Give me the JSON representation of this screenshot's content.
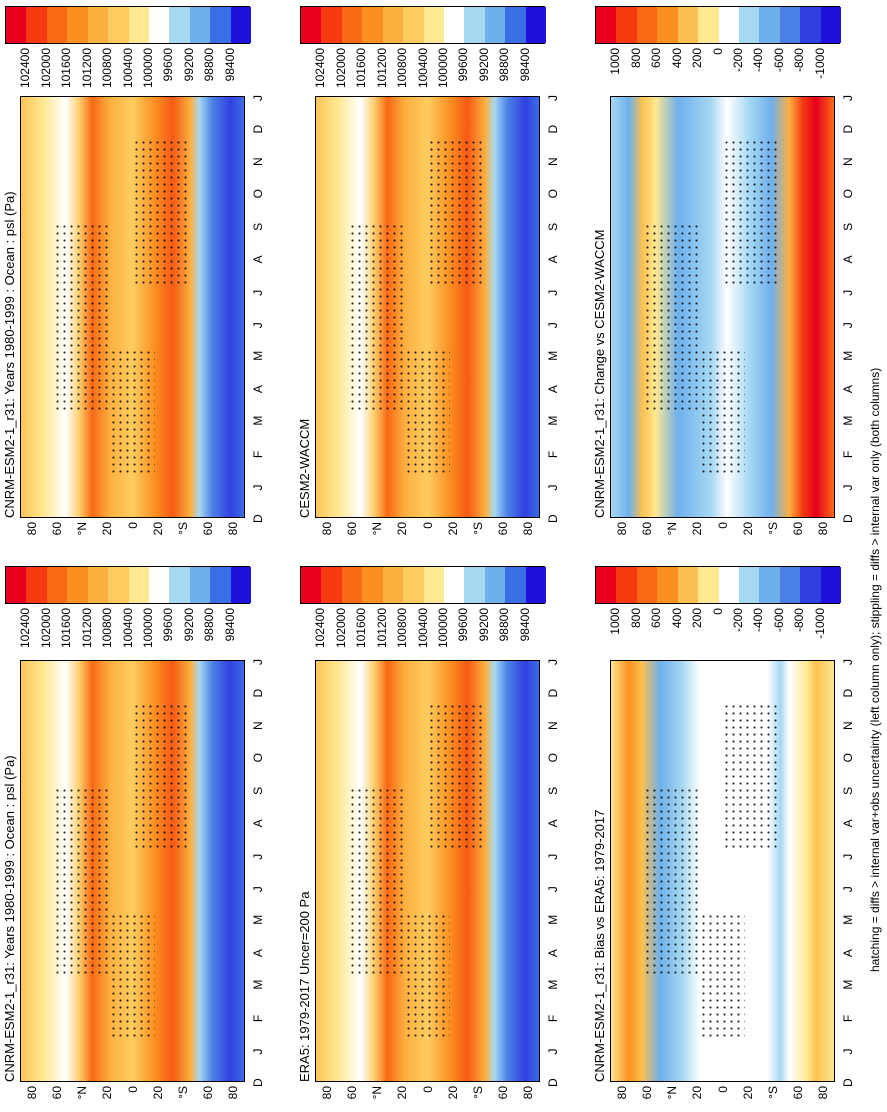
{
  "panels": [
    {
      "title": "CNRM-ESM2-1_r31: Years 1980-1999 : Ocean : psl (Pa)",
      "colorbar": {
        "labels": [
          102400,
          102000,
          101600,
          101200,
          100800,
          100400,
          100000,
          99600,
          99200,
          98800,
          98400
        ],
        "colors": [
          "#e8001c",
          "#f53a10",
          "#f86a14",
          "#fb9022",
          "#fcb040",
          "#fdcc60",
          "#fee890",
          "#ffffff",
          "#a6d8f2",
          "#6eb0ec",
          "#3a6ee4",
          "#2010dc"
        ]
      }
    },
    {
      "title": "CNRM-ESM2-1_r31: Years 1980-1999 : Ocean : psl (Pa)",
      "colorbar": {
        "labels": [
          102400,
          102000,
          101600,
          101200,
          100800,
          100400,
          100000,
          99600,
          99200,
          98800,
          98400
        ],
        "colors": [
          "#e8001c",
          "#f53a10",
          "#f86a14",
          "#fb9022",
          "#fcb040",
          "#fdcc60",
          "#fee890",
          "#ffffff",
          "#a6d8f2",
          "#6eb0ec",
          "#3a6ee4",
          "#2010dc"
        ]
      }
    },
    {
      "title": "ERA5: 1979-2017 Uncer=200 Pa",
      "colorbar": {
        "labels": [
          102400,
          102000,
          101600,
          101200,
          100800,
          100400,
          100000,
          99600,
          99200,
          98800,
          98400
        ],
        "colors": [
          "#e8001c",
          "#f53a10",
          "#f86a14",
          "#fb9022",
          "#fcb040",
          "#fdcc60",
          "#fee890",
          "#ffffff",
          "#a6d8f2",
          "#6eb0ec",
          "#3a6ee4",
          "#2010dc"
        ]
      }
    },
    {
      "title": "CESM2-WACCM",
      "colorbar": {
        "labels": [
          102400,
          102000,
          101600,
          101200,
          100800,
          100400,
          100000,
          99600,
          99200,
          98800,
          98400
        ],
        "colors": [
          "#e8001c",
          "#f53a10",
          "#f86a14",
          "#fb9022",
          "#fcb040",
          "#fdcc60",
          "#fee890",
          "#ffffff",
          "#a6d8f2",
          "#6eb0ec",
          "#3a6ee4",
          "#2010dc"
        ]
      }
    },
    {
      "title": "CNRM-ESM2-1_r31: Bias vs ERA5: 1979-2017",
      "colorbar": {
        "labels": [
          1000,
          800,
          600,
          400,
          200,
          0,
          -200,
          -400,
          -600,
          -800,
          -1000
        ],
        "colors": [
          "#e8001c",
          "#f53a10",
          "#f86a14",
          "#fb9022",
          "#fcc050",
          "#fee890",
          "#ffffff",
          "#a6d8f2",
          "#6eb0ec",
          "#4a80e6",
          "#3040e0",
          "#2010dc"
        ]
      }
    },
    {
      "title": "CNRM-ESM2-1_r31: Change vs CESM2-WACCM",
      "colorbar": {
        "labels": [
          1000,
          800,
          600,
          400,
          200,
          0,
          -200,
          -400,
          -600,
          -800,
          -1000
        ],
        "colors": [
          "#e8001c",
          "#f53a10",
          "#f86a14",
          "#fb9022",
          "#fcc050",
          "#fee890",
          "#ffffff",
          "#a6d8f2",
          "#6eb0ec",
          "#4a80e6",
          "#3040e0",
          "#2010dc"
        ]
      }
    }
  ],
  "months": [
    "D",
    "J",
    "F",
    "M",
    "A",
    "M",
    "J",
    "J",
    "A",
    "S",
    "O",
    "N",
    "D",
    "J"
  ],
  "latitudes": [
    "80",
    "60",
    "°N",
    "20",
    "0",
    "20",
    "°S",
    "60",
    "80"
  ],
  "footnote": "hatching = diffs > internal var+obs uncertainty (left column only); stippling = diffs > internal var only (both columns)"
}
